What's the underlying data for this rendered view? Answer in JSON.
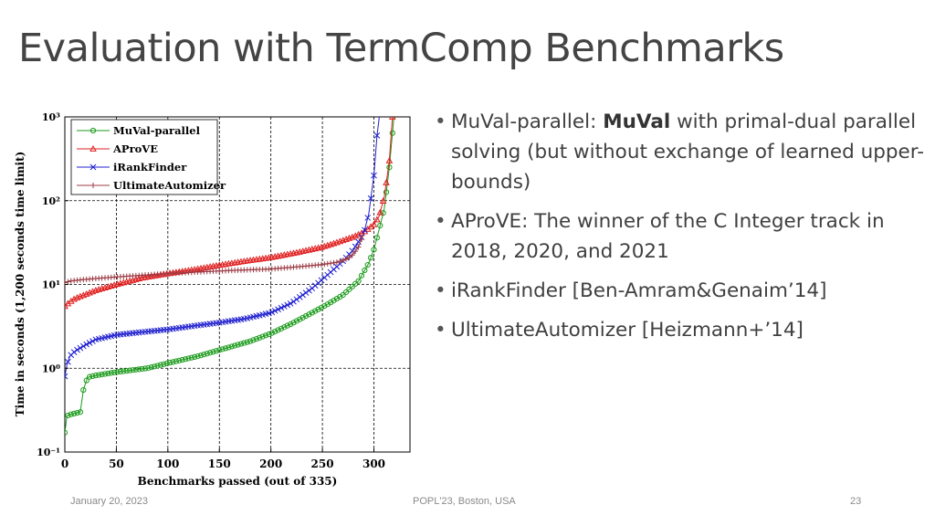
{
  "slide": {
    "title": "Evaluation with TermComp Benchmarks",
    "bullets": [
      {
        "prefix": "MuVal-parallel: ",
        "bold": "MuVal",
        "suffix": " with primal-dual parallel solving (but without exchange of learned upper-bounds)"
      },
      {
        "prefix": "AProVE: The winner of the C Integer track in 2018, 2020, and 2021",
        "bold": "",
        "suffix": ""
      },
      {
        "prefix": "iRankFinder [Ben-Amram&Genaim’14]",
        "bold": "",
        "suffix": ""
      },
      {
        "prefix": "UltimateAutomizer [Heizmann+’14]",
        "bold": "",
        "suffix": ""
      }
    ],
    "footer": {
      "date": "January 20, 2023",
      "conference": "POPL'23, Boston, USA",
      "page": "23"
    }
  },
  "chart_data": {
    "type": "line",
    "title": "",
    "xlabel": "Benchmarks passed (out of 335)",
    "ylabel": "Time in seconds (1,200 seconds time limit)",
    "xlim": [
      0,
      335
    ],
    "ylim": [
      0.1,
      1000
    ],
    "yscale": "log",
    "grid": true,
    "legend_position": "top-left",
    "x_ticks": [
      "0",
      "50",
      "100",
      "150",
      "200",
      "250",
      "300"
    ],
    "y_ticks": [
      "10⁻¹",
      "10⁰",
      "10¹",
      "10²",
      "10³"
    ],
    "series": [
      {
        "name": "MuVal-parallel",
        "color": "#1a9a1a",
        "marker": "circle",
        "x": [
          0,
          2,
          5,
          15,
          18,
          22,
          30,
          50,
          80,
          100,
          130,
          150,
          180,
          200,
          220,
          240,
          255,
          270,
          285,
          295,
          300,
          305,
          310,
          315,
          320
        ],
        "y": [
          0.17,
          0.27,
          0.28,
          0.3,
          0.55,
          0.78,
          0.82,
          0.9,
          1.0,
          1.15,
          1.4,
          1.65,
          2.1,
          2.6,
          3.4,
          4.6,
          5.8,
          7.5,
          11,
          18,
          26,
          45,
          80,
          250,
          1200
        ]
      },
      {
        "name": "AProVE",
        "color": "#e02020",
        "marker": "triangle",
        "x": [
          0,
          5,
          10,
          20,
          30,
          50,
          75,
          100,
          125,
          150,
          175,
          200,
          225,
          250,
          265,
          280,
          290,
          300,
          305,
          310,
          315,
          318
        ],
        "y": [
          5.5,
          6.2,
          6.8,
          7.6,
          8.5,
          10,
          12,
          13.5,
          15,
          17,
          19,
          21,
          24,
          28,
          32,
          37,
          42,
          52,
          65,
          110,
          300,
          1000
        ]
      },
      {
        "name": "iRankFinder",
        "color": "#2020d0",
        "marker": "x",
        "x": [
          0,
          2,
          5,
          10,
          20,
          30,
          50,
          75,
          100,
          125,
          150,
          175,
          200,
          220,
          240,
          255,
          270,
          280,
          290,
          295,
          300,
          303,
          306
        ],
        "y": [
          0.8,
          1.1,
          1.4,
          1.6,
          1.9,
          2.2,
          2.5,
          2.7,
          2.9,
          3.2,
          3.5,
          3.9,
          4.6,
          6,
          9,
          13,
          19,
          26,
          40,
          70,
          200,
          600,
          1200
        ]
      },
      {
        "name": "UltimateAutomizer",
        "color": "#9c3c46",
        "marker": "plus",
        "x": [
          0,
          5,
          20,
          50,
          100,
          150,
          200,
          225,
          250,
          265,
          275,
          280,
          285,
          290
        ],
        "y": [
          10.5,
          11,
          11.5,
          12.3,
          13.5,
          14.5,
          15.3,
          16.2,
          17.3,
          18.5,
          20.5,
          23,
          28,
          40
        ]
      }
    ]
  }
}
